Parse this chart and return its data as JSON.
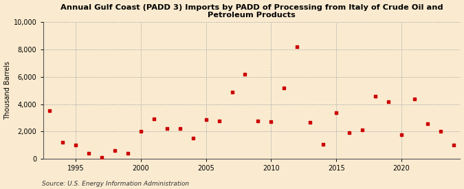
{
  "title": "Annual Gulf Coast (PADD 3) Imports by PADD of Processing from Italy of Crude Oil and\nPetroleum Products",
  "ylabel": "Thousand Barrels",
  "source": "Source: U.S. Energy Information Administration",
  "background_color": "#faebd0",
  "plot_bg_color": "#faebd0",
  "marker_color": "#cc0000",
  "ylim": [
    0,
    10000
  ],
  "yticks": [
    0,
    2000,
    4000,
    6000,
    8000,
    10000
  ],
  "xlim": [
    1992.5,
    2024.5
  ],
  "xticks": [
    1995,
    2000,
    2005,
    2010,
    2015,
    2020
  ],
  "years": [
    1993,
    1994,
    1995,
    1996,
    1997,
    1998,
    1999,
    2000,
    2001,
    2002,
    2003,
    2004,
    2005,
    2006,
    2007,
    2008,
    2009,
    2010,
    2011,
    2012,
    2013,
    2014,
    2015,
    2016,
    2017,
    2018,
    2019,
    2020,
    2021,
    2022,
    2023,
    2024
  ],
  "values": [
    3500,
    1200,
    1000,
    400,
    100,
    600,
    400,
    2000,
    2900,
    2200,
    2200,
    1500,
    2850,
    2750,
    4900,
    6200,
    2750,
    2700,
    5200,
    8200,
    2650,
    1050,
    3350,
    1900,
    2100,
    4600,
    4200,
    1750,
    4400,
    2550,
    2000,
    1000
  ]
}
